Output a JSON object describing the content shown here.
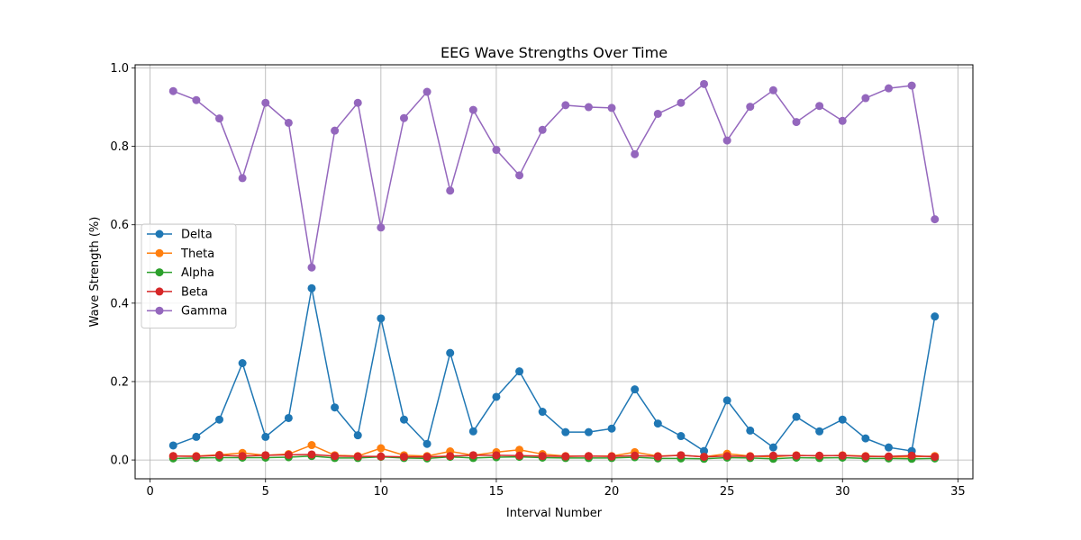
{
  "chart_data": {
    "type": "line",
    "title": "EEG Wave Strengths Over Time",
    "xlabel": "Interval Number",
    "ylabel": "Wave Strength (%)",
    "xlim": [
      -0.65,
      35.65
    ],
    "ylim": [
      -0.048,
      1.008
    ],
    "xticks": [
      0,
      5,
      10,
      15,
      20,
      25,
      30,
      35
    ],
    "yticks": [
      0.0,
      0.2,
      0.4,
      0.6,
      0.8,
      1.0
    ],
    "grid": true,
    "legend_position": "center-left",
    "x": [
      1,
      2,
      3,
      4,
      5,
      6,
      7,
      8,
      9,
      10,
      11,
      12,
      13,
      14,
      15,
      16,
      17,
      18,
      19,
      20,
      21,
      22,
      23,
      24,
      25,
      26,
      27,
      28,
      29,
      30,
      31,
      32,
      33,
      34
    ],
    "series": [
      {
        "name": "Delta",
        "color": "#1f77b4",
        "values": [
          0.037,
          0.059,
          0.103,
          0.247,
          0.059,
          0.107,
          0.438,
          0.134,
          0.063,
          0.361,
          0.103,
          0.041,
          0.273,
          0.073,
          0.161,
          0.226,
          0.123,
          0.071,
          0.071,
          0.08,
          0.18,
          0.093,
          0.061,
          0.023,
          0.152,
          0.075,
          0.032,
          0.11,
          0.073,
          0.103,
          0.055,
          0.032,
          0.023,
          0.366
        ]
      },
      {
        "name": "Theta",
        "color": "#ff7f0e",
        "values": [
          0.01,
          0.01,
          0.013,
          0.018,
          0.012,
          0.015,
          0.038,
          0.012,
          0.01,
          0.03,
          0.012,
          0.01,
          0.022,
          0.012,
          0.02,
          0.026,
          0.015,
          0.01,
          0.01,
          0.01,
          0.02,
          0.01,
          0.012,
          0.008,
          0.016,
          0.01,
          0.008,
          0.012,
          0.01,
          0.012,
          0.01,
          0.008,
          0.008,
          0.01
        ]
      },
      {
        "name": "Alpha",
        "color": "#2ca02c",
        "values": [
          0.004,
          0.005,
          0.006,
          0.006,
          0.006,
          0.007,
          0.01,
          0.005,
          0.005,
          0.008,
          0.005,
          0.004,
          0.008,
          0.005,
          0.007,
          0.008,
          0.006,
          0.005,
          0.005,
          0.005,
          0.007,
          0.004,
          0.004,
          0.003,
          0.006,
          0.005,
          0.003,
          0.006,
          0.005,
          0.006,
          0.004,
          0.004,
          0.003,
          0.004
        ]
      },
      {
        "name": "Beta",
        "color": "#d62728",
        "values": [
          0.01,
          0.009,
          0.012,
          0.01,
          0.012,
          0.013,
          0.014,
          0.01,
          0.009,
          0.009,
          0.008,
          0.008,
          0.01,
          0.012,
          0.012,
          0.011,
          0.01,
          0.009,
          0.01,
          0.009,
          0.011,
          0.009,
          0.012,
          0.008,
          0.01,
          0.009,
          0.011,
          0.011,
          0.011,
          0.011,
          0.009,
          0.009,
          0.011,
          0.008
        ]
      },
      {
        "name": "Gamma",
        "color": "#9467bd",
        "values": [
          0.941,
          0.918,
          0.871,
          0.719,
          0.911,
          0.86,
          0.491,
          0.84,
          0.911,
          0.593,
          0.872,
          0.939,
          0.687,
          0.893,
          0.791,
          0.726,
          0.842,
          0.905,
          0.9,
          0.898,
          0.78,
          0.883,
          0.911,
          0.959,
          0.815,
          0.901,
          0.943,
          0.862,
          0.903,
          0.865,
          0.923,
          0.948,
          0.955,
          0.614
        ]
      }
    ]
  }
}
